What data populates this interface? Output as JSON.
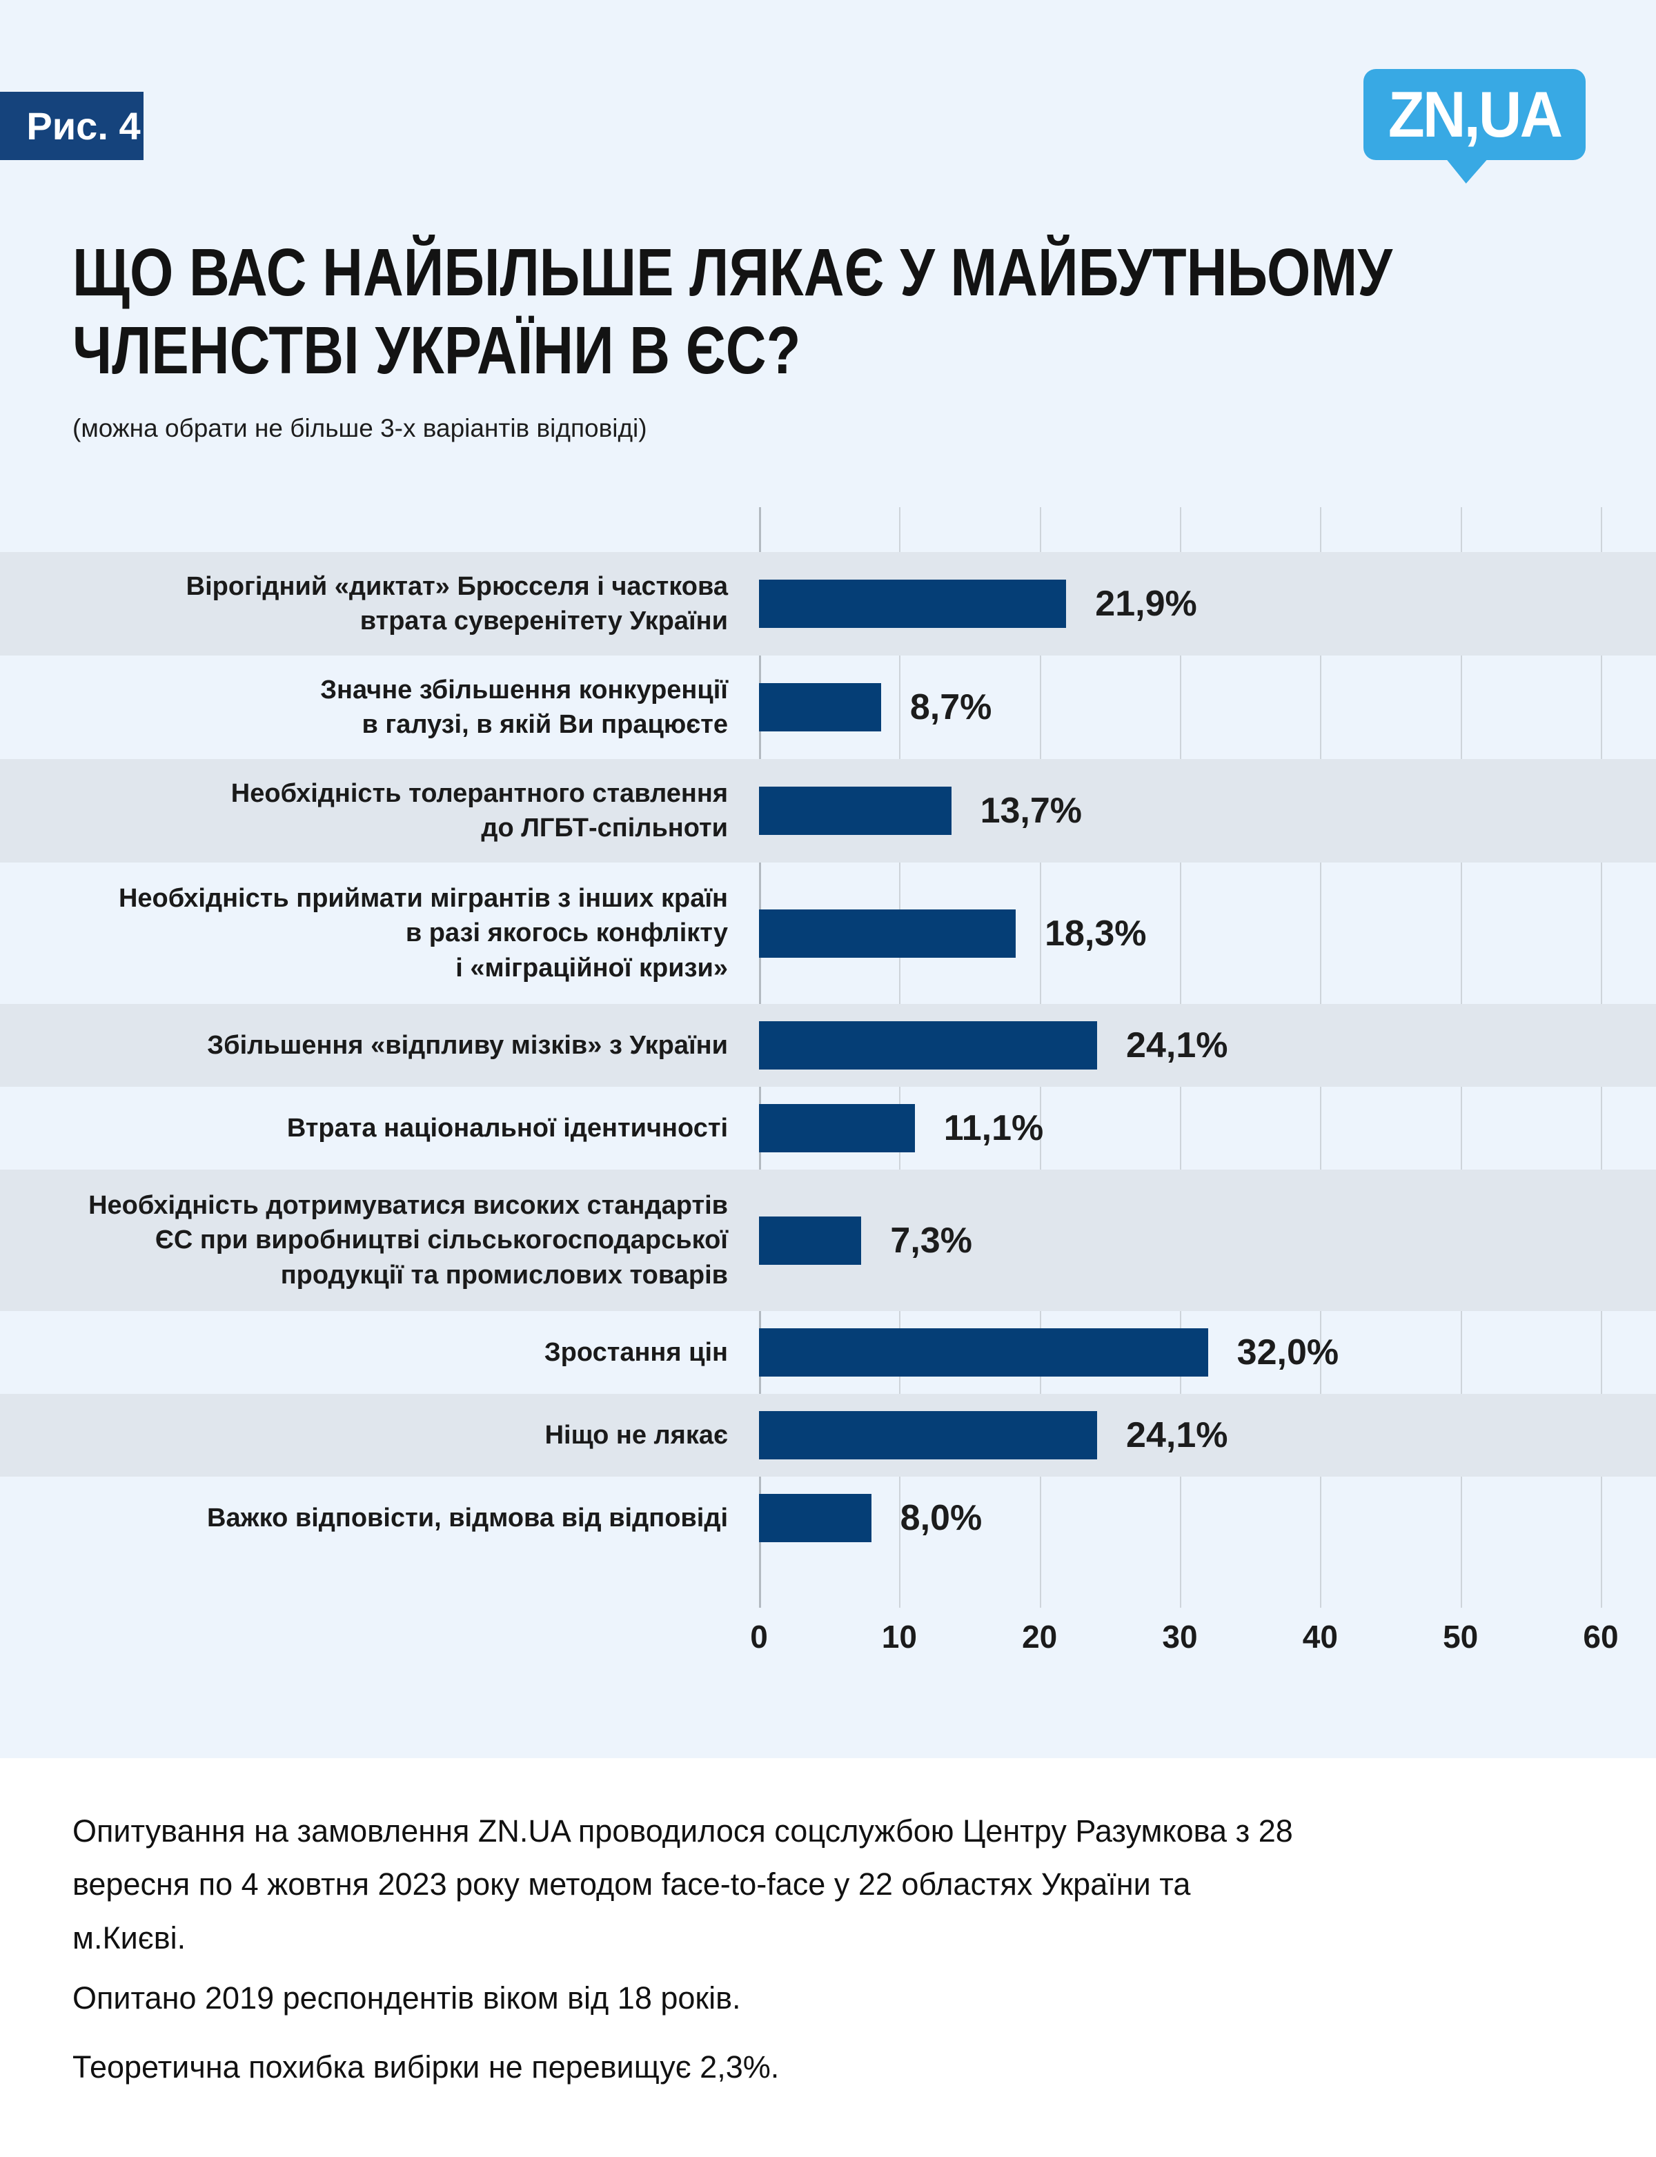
{
  "figure_label": "Рис. 4",
  "logo_text": "ZN,UA",
  "title": "ЩО ВАС НАЙБІЛЬШЕ ЛЯКАЄ У МАЙБУТНЬОМУ\nЧЛЕНСТВІ УКРАЇНИ В ЄС?",
  "subtitle": "(можна обрати не більше 3-х варіантів відповіді)",
  "chart_data": {
    "type": "bar",
    "orientation": "horizontal",
    "categories": [
      "Вірогідний «диктат» Брюсселя і часткова\nвтрата суверенітету України",
      "Значне збільшення конкуренції\nв галузі, в якій Ви працюєте",
      "Необхідність толерантного ставлення\nдо ЛГБТ-спільноти",
      "Необхідність приймати мігрантів з інших країн\nв разі якогось конфлікту\nі «міграційної кризи»",
      "Збільшення «відпливу мізків» з України",
      "Втрата національної ідентичності",
      "Необхідність дотримуватися високих стандартів\nЄС при виробництві сільськогосподарської\nпродукції та промислових товарів",
      "Зростання цін",
      "Ніщо не лякає",
      "Важко відповісти, відмова від відповіді"
    ],
    "values": [
      21.9,
      8.7,
      13.7,
      18.3,
      24.1,
      11.1,
      7.3,
      32.0,
      24.1,
      8.0
    ],
    "value_labels": [
      "21,9%",
      "8,7%",
      "13,7%",
      "18,3%",
      "24,1%",
      "11,1%",
      "7,3%",
      "32,0%",
      "24,1%",
      "8,0%"
    ],
    "xlim": [
      0,
      60
    ],
    "x_ticks": [
      0,
      10,
      20,
      30,
      40,
      50,
      60
    ],
    "x_tick_labels": [
      "0",
      "10",
      "20",
      "30",
      "40",
      "50",
      "60"
    ],
    "grid": true,
    "legend": false,
    "striped_rows": "odd rows shaded"
  },
  "colors": {
    "background": "#edf4fc",
    "stripe": "#e0e6ed",
    "bar": "#053e76",
    "badge": "#15437c",
    "logo": "#38a9e4",
    "grid": "#ced4da",
    "grid_zero": "#b3bac1"
  },
  "footer": {
    "line1": "Опитування на замовлення ZN.UA проводилося соцслужбою Центру Разумкова з 28 вересня по 4 жовтня 2023 року методом face-to-face у 22 областях України та м.Києві.",
    "line2": "Опитано 2019 респондентів віком від 18 років.",
    "line3": "Теоретична похибка вибірки не перевищує 2,3%."
  }
}
